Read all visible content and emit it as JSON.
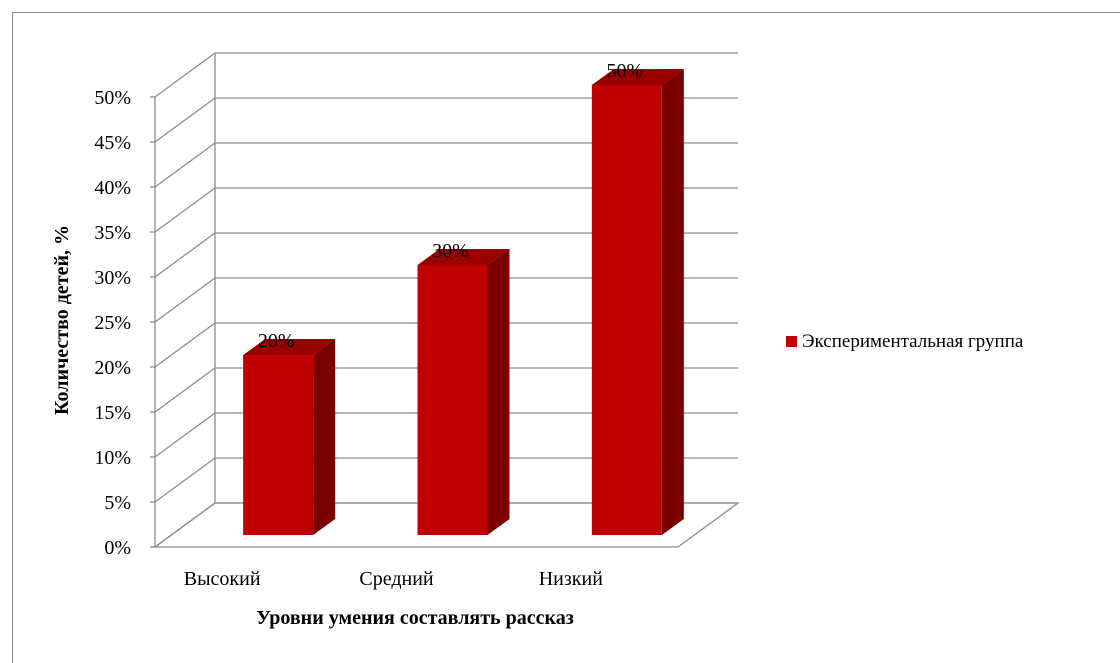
{
  "chart_data": {
    "type": "bar",
    "categories": [
      "Высокий",
      "Средний",
      "Низкий"
    ],
    "series": [
      {
        "name": "Экспериментальная группа",
        "values": [
          20,
          30,
          50
        ],
        "color": "#c00000"
      }
    ],
    "data_labels": [
      "20%",
      "30%",
      "50%"
    ],
    "xlabel": "Уровни умения составлять рассказ",
    "ylabel": "Количество детей, %",
    "yticks": [
      "0%",
      "5%",
      "10%",
      "15%",
      "20%",
      "25%",
      "30%",
      "35%",
      "40%",
      "45%",
      "50%"
    ],
    "ylim": [
      0,
      50
    ],
    "grid": true,
    "legend_position": "right",
    "style": "3d-clustered-column"
  },
  "colors": {
    "bar_front": "#c00000",
    "bar_top": "#9a0000",
    "bar_side": "#7a0000",
    "grid": "#8c8c8c"
  }
}
